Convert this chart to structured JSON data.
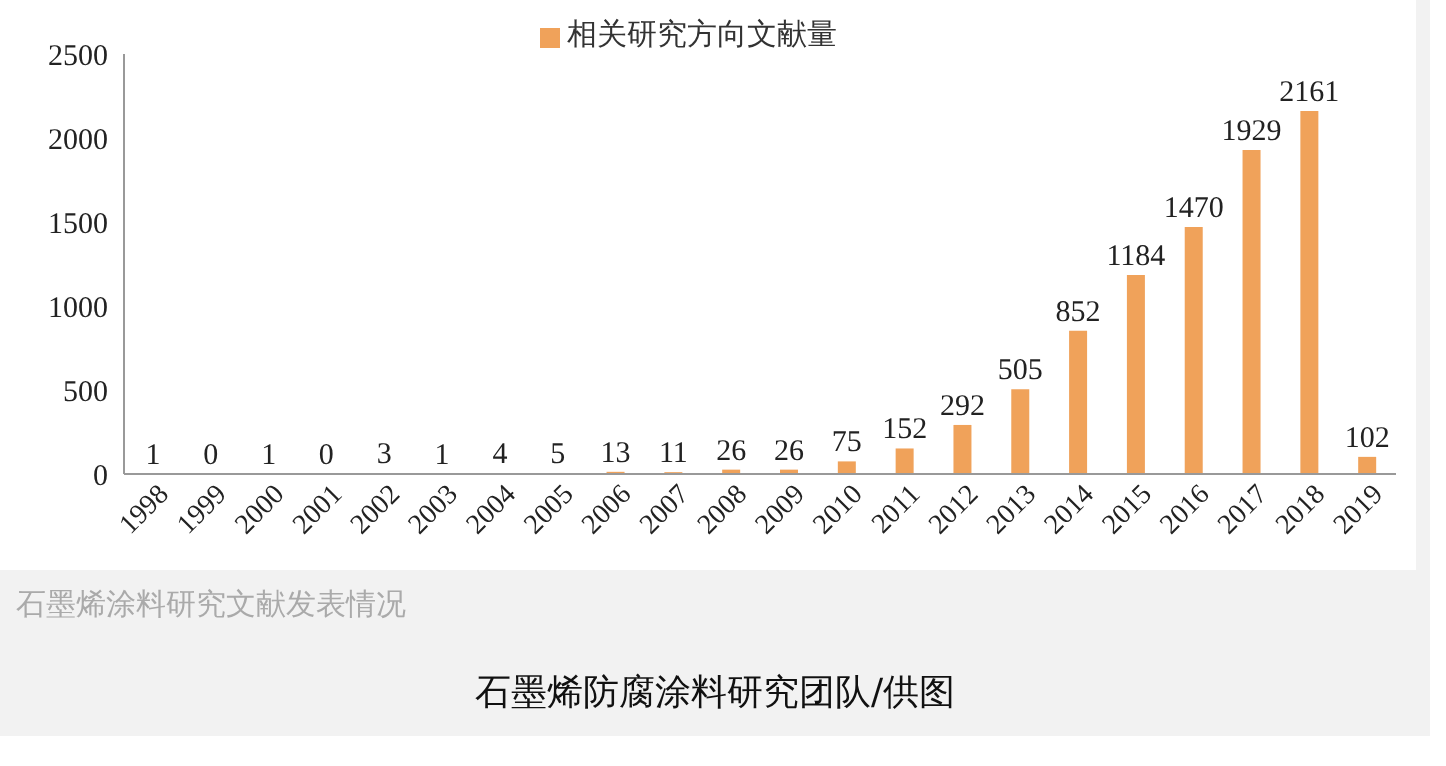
{
  "chart_data": {
    "type": "bar",
    "categories": [
      "1998",
      "1999",
      "2000",
      "2001",
      "2002",
      "2003",
      "2004",
      "2005",
      "2006",
      "2007",
      "2008",
      "2009",
      "2010",
      "2011",
      "2012",
      "2013",
      "2014",
      "2015",
      "2016",
      "2017",
      "2018",
      "2019"
    ],
    "series": [
      {
        "name": "相关研究方向文献量",
        "color": "#f0a25a",
        "values": [
          1,
          0,
          1,
          0,
          3,
          1,
          4,
          5,
          13,
          11,
          26,
          26,
          75,
          152,
          292,
          505,
          852,
          1184,
          1470,
          1929,
          2161,
          102
        ]
      }
    ],
    "ylim": [
      0,
      2500
    ],
    "yticks": [
      0,
      500,
      1000,
      1500,
      2000,
      2500
    ],
    "grid": false,
    "legend": "top",
    "data_labels": true,
    "annotations": [
      "石墨烯涂料研究文献发表情况",
      "石墨烯防腐涂料研究团队/供图"
    ]
  }
}
